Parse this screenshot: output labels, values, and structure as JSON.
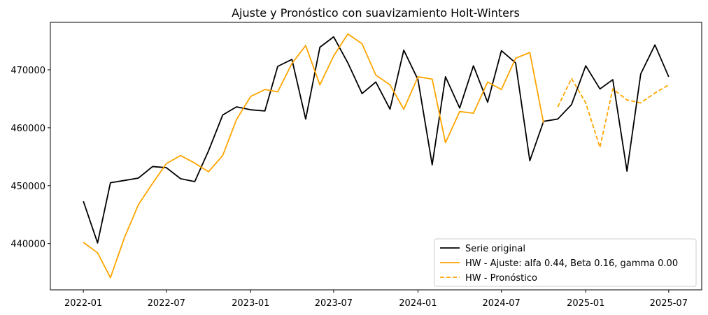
{
  "chart_data": {
    "type": "line",
    "title": "Ajuste y Pronóstico con suavizamiento Holt-Winters",
    "xlabel": "",
    "ylabel": "",
    "x_ticks": [
      "2022-01",
      "2022-07",
      "2023-01",
      "2023-07",
      "2024-01",
      "2024-07",
      "2025-01",
      "2025-07"
    ],
    "y_ticks": [
      440000,
      450000,
      460000,
      470000
    ],
    "xlim": [
      "2021-10-21",
      "2025-09-11"
    ],
    "ylim": [
      432000,
      478200
    ],
    "grid": false,
    "legend_placement": "lower-right",
    "series": [
      {
        "name": "Serie original",
        "color": "#000000",
        "style": "solid",
        "x": [
          "2022-01",
          "2022-02",
          "2022-03",
          "2022-04",
          "2022-05",
          "2022-06",
          "2022-07",
          "2022-08",
          "2022-09",
          "2022-10",
          "2022-11",
          "2022-12",
          "2023-01",
          "2023-02",
          "2023-03",
          "2023-04",
          "2023-05",
          "2023-06",
          "2023-07",
          "2023-08",
          "2023-09",
          "2023-10",
          "2023-11",
          "2023-12",
          "2024-01",
          "2024-02",
          "2024-03",
          "2024-04",
          "2024-05",
          "2024-06",
          "2024-07",
          "2024-08",
          "2024-09",
          "2024-10",
          "2024-11",
          "2024-12",
          "2025-01",
          "2025-02",
          "2025-03",
          "2025-04",
          "2025-05",
          "2025-06",
          "2025-07"
        ],
        "values": [
          447300,
          440100,
          450500,
          450900,
          451300,
          453300,
          453100,
          451200,
          450700,
          456000,
          462200,
          463600,
          463100,
          462900,
          470600,
          471800,
          461500,
          473900,
          475700,
          471200,
          465900,
          467900,
          463200,
          473400,
          468300,
          453600,
          468800,
          463400,
          470700,
          464400,
          473300,
          471200,
          454300,
          461100,
          461500,
          464000,
          470700,
          466700,
          468300,
          452500,
          469300,
          474300,
          468800
        ]
      },
      {
        "name": "HW - Ajuste: alfa 0.44, Beta 0.16, gamma 0.00",
        "color": "#ffa500",
        "style": "solid",
        "x": [
          "2022-01",
          "2022-02",
          "2022-03",
          "2022-04",
          "2022-05",
          "2022-06",
          "2022-07",
          "2022-08",
          "2022-09",
          "2022-10",
          "2022-11",
          "2022-12",
          "2023-01",
          "2023-02",
          "2023-03",
          "2023-04",
          "2023-05",
          "2023-06",
          "2023-07",
          "2023-08",
          "2023-09",
          "2023-10",
          "2023-11",
          "2023-12",
          "2024-01",
          "2024-02",
          "2024-03",
          "2024-04",
          "2024-05",
          "2024-06",
          "2024-07",
          "2024-08",
          "2024-09",
          "2024-10"
        ],
        "values": [
          440200,
          438400,
          434100,
          441100,
          446700,
          450400,
          453800,
          455200,
          453900,
          452400,
          455200,
          461400,
          465400,
          466600,
          466200,
          471100,
          474200,
          467400,
          472400,
          476200,
          474500,
          469100,
          467400,
          463200,
          468800,
          468400,
          457400,
          462800,
          462500,
          467900,
          466600,
          472000,
          473000,
          460800
        ]
      },
      {
        "name": "HW - Pronóstico",
        "color": "#ffa500",
        "style": "dashed",
        "x": [
          "2024-11",
          "2024-12",
          "2025-01",
          "2025-02",
          "2025-03",
          "2025-04",
          "2025-05",
          "2025-06",
          "2025-07"
        ],
        "values": [
          463600,
          468500,
          464300,
          456600,
          466700,
          464800,
          464300,
          466000,
          467400
        ]
      }
    ]
  }
}
